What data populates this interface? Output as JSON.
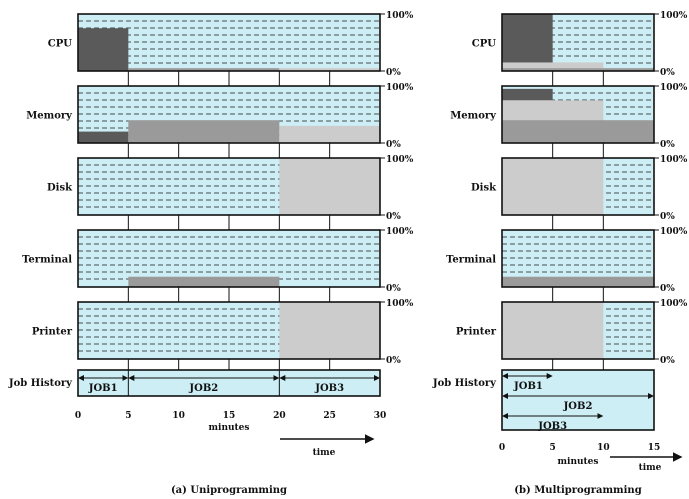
{
  "chart_data": [
    {
      "type": "utilization-timeline",
      "caption": "(a) Uniprogramming",
      "x_ticks": [
        "0",
        "5",
        "10",
        "15",
        "20",
        "25",
        "30"
      ],
      "x_range": [
        0,
        30
      ],
      "x_label": "minutes",
      "arrow_label": "time",
      "pct_top": "100%",
      "pct_bottom": "0%",
      "resources": [
        {
          "name": "CPU",
          "layers": [
            {
              "from": 0,
              "to": 5,
              "percent": 75,
              "tone": "dark"
            },
            {
              "from": 5,
              "to": 20,
              "percent": 5,
              "tone": "medium"
            },
            {
              "from": 20,
              "to": 30,
              "percent": 5,
              "tone": "light"
            }
          ]
        },
        {
          "name": "Memory",
          "layers": [
            {
              "from": 0,
              "to": 5,
              "percent": 20,
              "tone": "dark"
            },
            {
              "from": 5,
              "to": 20,
              "percent": 40,
              "tone": "medium"
            },
            {
              "from": 20,
              "to": 30,
              "percent": 30,
              "tone": "light"
            }
          ]
        },
        {
          "name": "Disk",
          "layers": [
            {
              "from": 20,
              "to": 30,
              "percent": 100,
              "tone": "light"
            }
          ]
        },
        {
          "name": "Terminal",
          "layers": [
            {
              "from": 5,
              "to": 20,
              "percent": 18,
              "tone": "medium"
            }
          ]
        },
        {
          "name": "Printer",
          "layers": [
            {
              "from": 20,
              "to": 30,
              "percent": 100,
              "tone": "light"
            }
          ]
        }
      ],
      "job_history_label": "Job History",
      "jobs": [
        {
          "name": "JOB1",
          "from": 0,
          "to": 5
        },
        {
          "name": "JOB2",
          "from": 5,
          "to": 20
        },
        {
          "name": "JOB3",
          "from": 20,
          "to": 30
        }
      ]
    },
    {
      "type": "utilization-timeline",
      "caption": "(b) Multiprogramming",
      "x_ticks": [
        "0",
        "5",
        "10",
        "15"
      ],
      "x_range": [
        0,
        15
      ],
      "x_label": "minutes",
      "arrow_label": "time",
      "pct_top": "100%",
      "pct_bottom": "0%",
      "resources": [
        {
          "name": "CPU",
          "layers": [
            {
              "from": 0,
              "to": 5,
              "percent": 100,
              "tone": "dark"
            },
            {
              "from": 0,
              "to": 10,
              "percent": 15,
              "tone": "light"
            },
            {
              "from": 0,
              "to": 15,
              "percent": 5,
              "tone": "medium"
            }
          ]
        },
        {
          "name": "Memory",
          "layers": [
            {
              "from": 0,
              "to": 5,
              "percent": 95,
              "tone": "dark"
            },
            {
              "from": 0,
              "to": 10,
              "percent": 75,
              "tone": "light"
            },
            {
              "from": 0,
              "to": 15,
              "percent": 40,
              "tone": "medium"
            }
          ]
        },
        {
          "name": "Disk",
          "layers": [
            {
              "from": 0,
              "to": 10,
              "percent": 100,
              "tone": "light"
            }
          ]
        },
        {
          "name": "Terminal",
          "layers": [
            {
              "from": 0,
              "to": 15,
              "percent": 18,
              "tone": "medium"
            }
          ]
        },
        {
          "name": "Printer",
          "layers": [
            {
              "from": 0,
              "to": 10,
              "percent": 100,
              "tone": "light"
            }
          ]
        }
      ],
      "job_history_label": "Job History",
      "jobs": [
        {
          "name": "JOB1",
          "from": 0,
          "to": 5
        },
        {
          "name": "JOB2",
          "from": 0,
          "to": 15
        },
        {
          "name": "JOB3",
          "from": 0,
          "to": 10
        }
      ]
    }
  ],
  "colors": {
    "panel_fill": "#cdeef5",
    "dash_line": "#1a1a1a",
    "dark": "#5a5a5a",
    "medium": "#9a9a9a",
    "light": "#cccccc",
    "job_fill": "#cdeef5"
  }
}
